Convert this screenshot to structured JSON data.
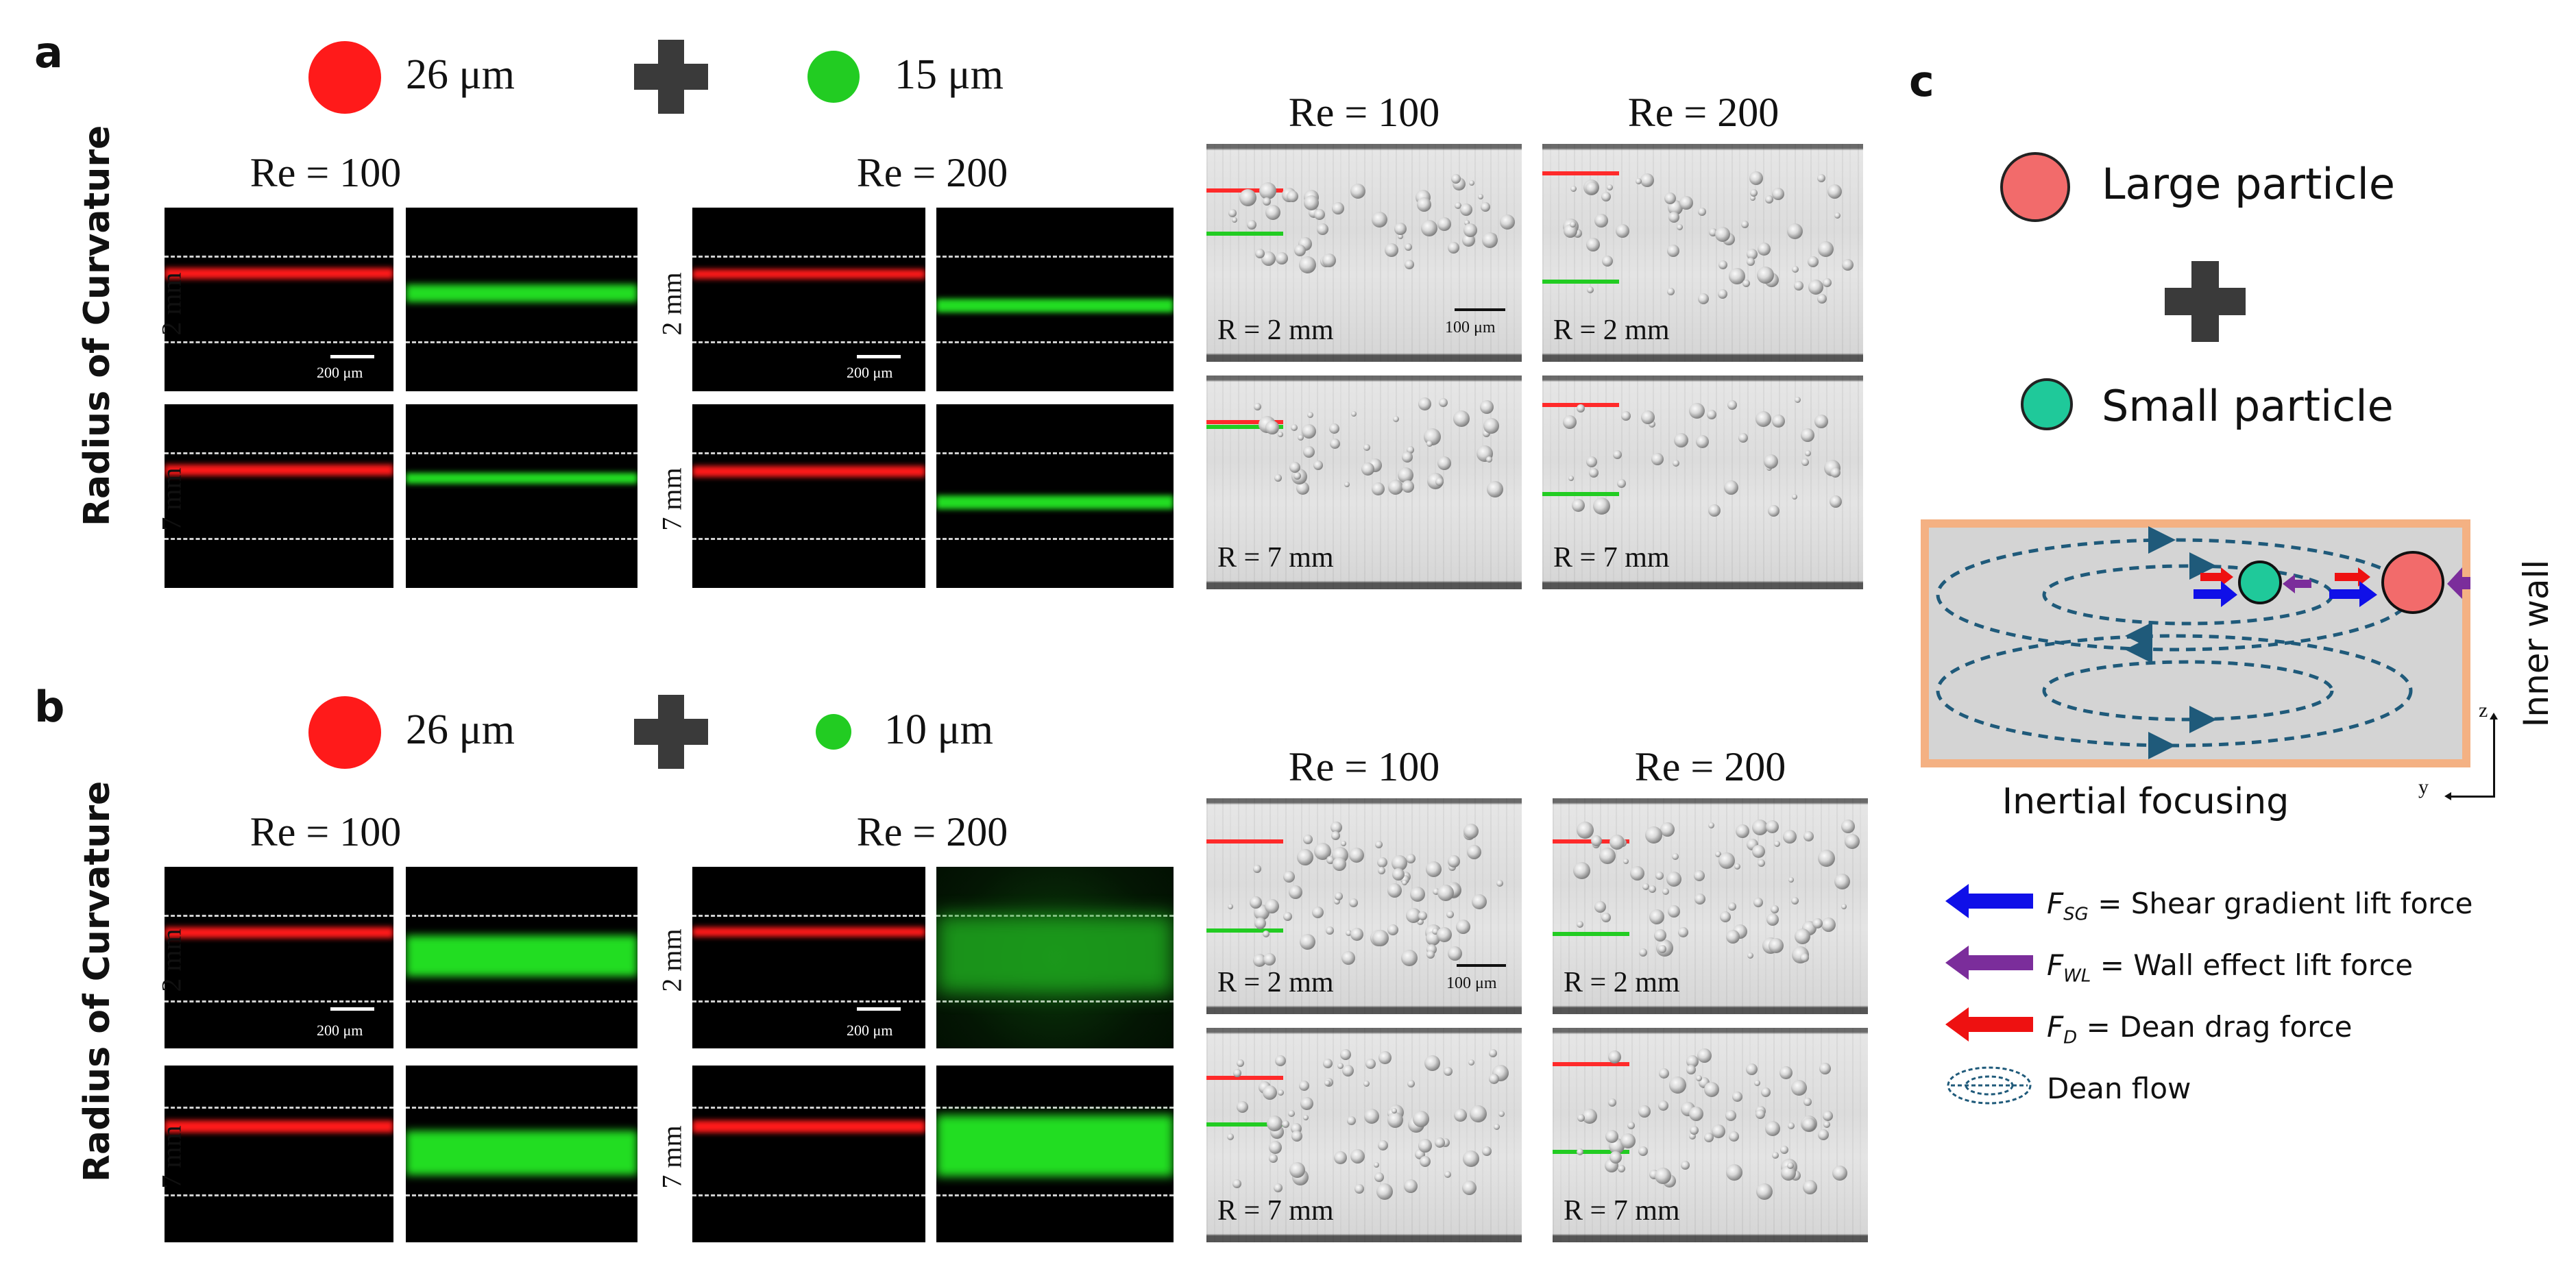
{
  "panels": {
    "a": {
      "label": "a",
      "large_size": "26 μm",
      "small_size": "15 μm",
      "fl_re": [
        "Re = 100",
        "Re = 200"
      ],
      "rows": [
        "2 mm",
        "7 mm"
      ],
      "side_title": "Radius of Curvature",
      "scale": "200 μm",
      "bf_re": [
        "Re = 100",
        "Re = 200"
      ],
      "bf_r": [
        "R = 2 mm",
        "R = 7 mm"
      ],
      "bf_scale": "100 μm"
    },
    "b": {
      "label": "b",
      "large_size": "26 μm",
      "small_size": "10 μm",
      "fl_re": [
        "Re = 100",
        "Re = 200"
      ],
      "rows": [
        "2 mm",
        "7 mm"
      ],
      "side_title": "Radius of Curvature",
      "scale": "200 μm",
      "bf_re": [
        "Re = 100",
        "Re = 200"
      ],
      "bf_r": [
        "R = 2 mm",
        "R = 7 mm"
      ],
      "bf_scale": "100 μm"
    },
    "c": {
      "label": "c",
      "large_particle": "Large particle",
      "small_particle": "Small particle",
      "inner_wall": "Inner wall",
      "caption": "Inertial focusing",
      "axis_z": "z",
      "axis_y": "y",
      "legend": [
        {
          "sym": "F",
          "sub": "SG",
          "text": "= Shear gradient lift force",
          "color": "#1010e8"
        },
        {
          "sym": "F",
          "sub": "WL",
          "text": "= Wall effect lift force",
          "color": "#7b2d9b"
        },
        {
          "sym": "F",
          "sub": "D",
          "text": "= Dean drag force",
          "color": "#ee1111"
        }
      ],
      "dean_flow": "Dean flow"
    }
  },
  "colors": {
    "red_particle": "#ff1a1a",
    "green_particle": "#22cc22",
    "large_particle": "#f26b6b",
    "small_particle": "#1fc99a",
    "channel_border": "#f4b183",
    "dean_line": "#1f5a7a"
  }
}
